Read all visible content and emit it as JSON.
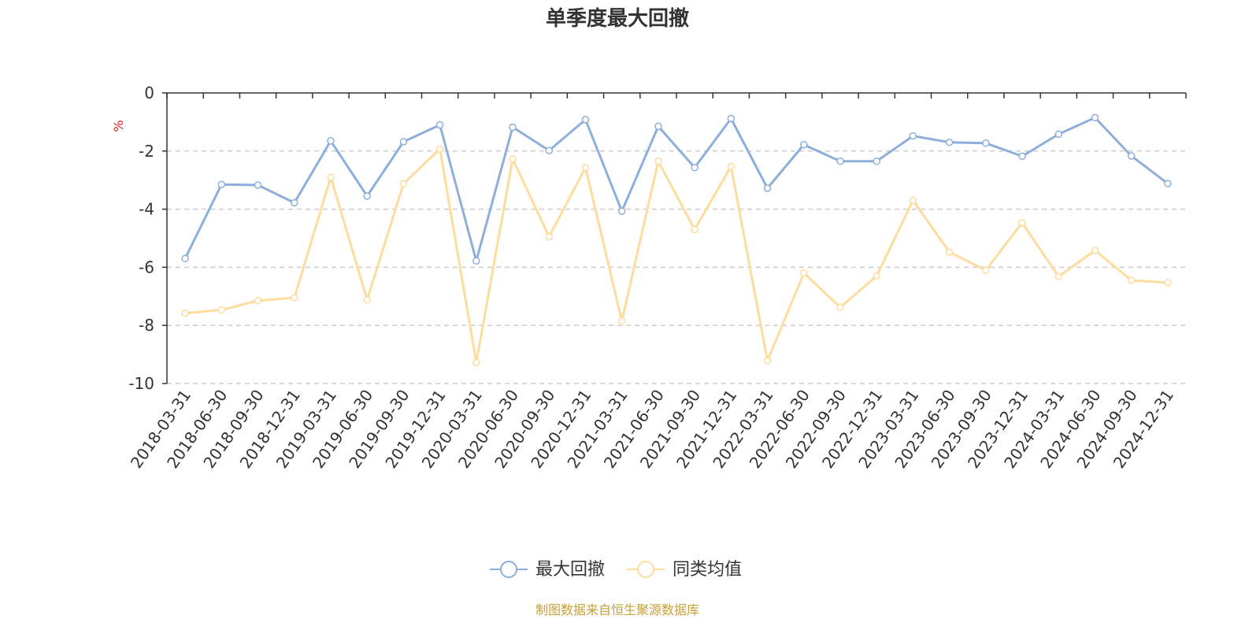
{
  "chart_data": {
    "type": "line",
    "title": "单季度最大回撤",
    "ylabel": "%",
    "xlabel": "",
    "ylim": [
      -10,
      0
    ],
    "yticks": [
      0,
      -2,
      -4,
      -6,
      -8,
      -10
    ],
    "grid": true,
    "legend_position": "bottom-center",
    "categories": [
      "2018-03-31",
      "2018-06-30",
      "2018-09-30",
      "2018-12-31",
      "2019-03-31",
      "2019-06-30",
      "2019-09-30",
      "2019-12-31",
      "2020-03-31",
      "2020-06-30",
      "2020-09-30",
      "2020-12-31",
      "2021-03-31",
      "2021-06-30",
      "2021-09-30",
      "2021-12-31",
      "2022-03-31",
      "2022-06-30",
      "2022-09-30",
      "2022-12-31",
      "2023-03-31",
      "2023-06-30",
      "2023-09-30",
      "2023-12-31",
      "2024-03-31",
      "2024-06-30",
      "2024-09-30",
      "2024-12-31"
    ],
    "series": [
      {
        "name": "最大回撤",
        "color": "#8eaedb",
        "values": [
          -5.7,
          -3.15,
          -3.17,
          -3.78,
          -1.65,
          -3.55,
          -1.68,
          -1.1,
          -5.78,
          -1.18,
          -1.98,
          -0.92,
          -4.07,
          -1.15,
          -2.57,
          -0.88,
          -3.28,
          -1.78,
          -2.35,
          -2.35,
          -1.48,
          -1.7,
          -1.73,
          -2.18,
          -1.42,
          -0.85,
          -2.17,
          -3.12
        ]
      },
      {
        "name": "同类均值",
        "color": "#fddc9e",
        "values": [
          -7.58,
          -7.47,
          -7.15,
          -7.05,
          -2.9,
          -7.12,
          -3.12,
          -1.93,
          -9.28,
          -2.27,
          -4.95,
          -2.57,
          -7.85,
          -2.35,
          -4.7,
          -2.53,
          -9.22,
          -6.2,
          -7.38,
          -6.3,
          -3.7,
          -5.48,
          -6.1,
          -4.47,
          -6.32,
          -5.42,
          -6.45,
          -6.53
        ]
      }
    ]
  },
  "unit_color": "#e0201b",
  "footer": {
    "source": "制图数据来自恒生聚源数据库",
    "color": "#c8a03a"
  }
}
